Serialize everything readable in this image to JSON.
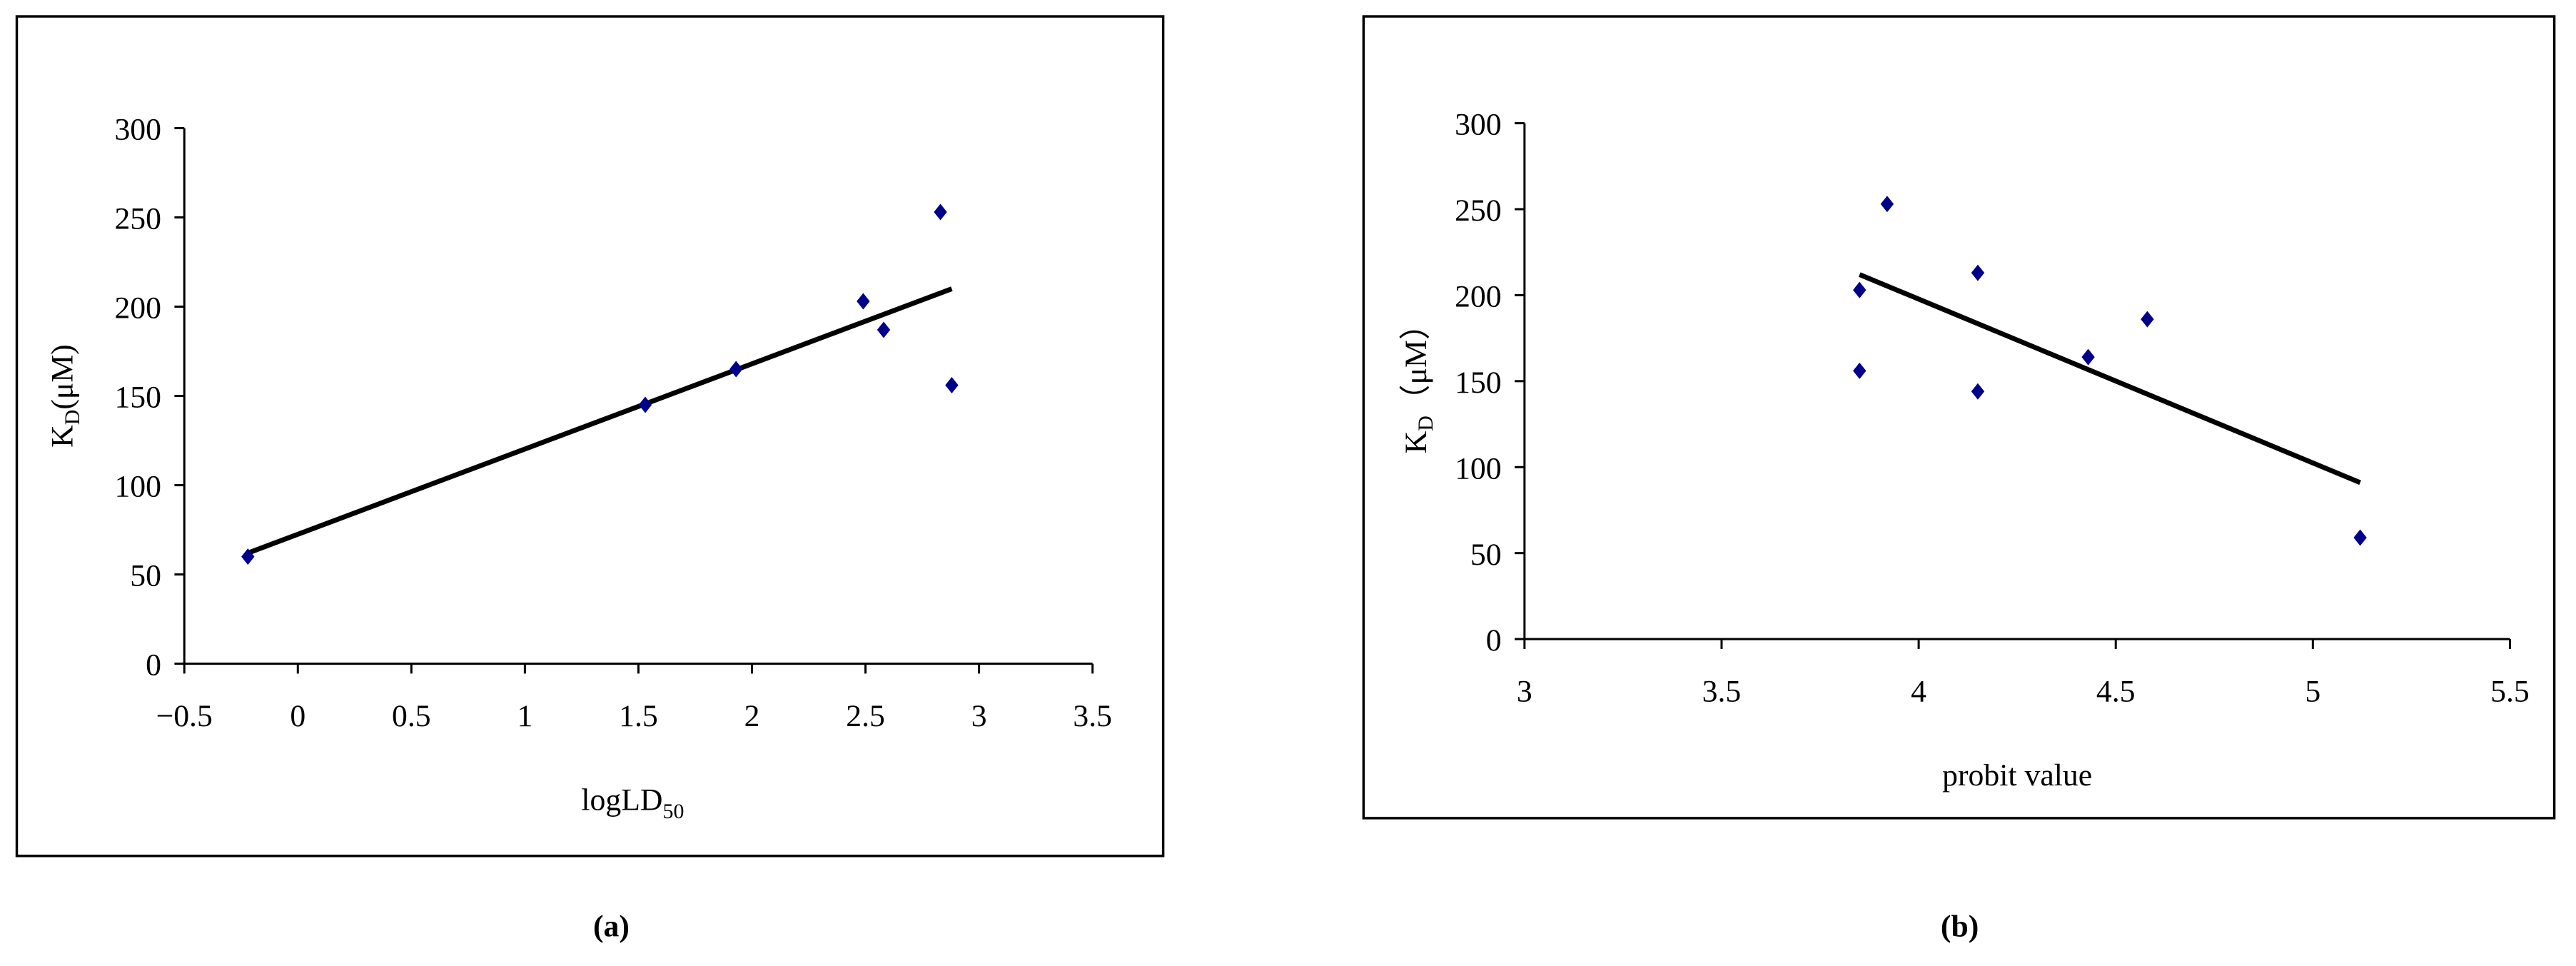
{
  "chart_data": [
    {
      "type": "scatter",
      "panel_label": "(a)",
      "x_label": [
        "logLD",
        "50"
      ],
      "y_label": [
        "K",
        "D",
        "(μM)"
      ],
      "x": [
        -0.22,
        1.53,
        1.93,
        2.49,
        2.58,
        2.83,
        2.88
      ],
      "values": [
        60,
        145,
        165,
        203,
        187,
        253,
        156
      ],
      "color": "#00008b",
      "trendline": {
        "x": [
          -0.22,
          2.88
        ],
        "values": [
          62,
          210
        ],
        "color": "#000000"
      },
      "xlim": [
        -0.5,
        3.5
      ],
      "xticks": [
        {
          "value": -0.5,
          "label": "−0.5"
        },
        0,
        0.5,
        1,
        1.5,
        2,
        2.5,
        3,
        3.5
      ],
      "ylim": [
        0,
        300
      ],
      "yticks": [
        0,
        50,
        100,
        150,
        200,
        250,
        300
      ]
    },
    {
      "type": "scatter",
      "panel_label": "(b)",
      "x_label": [
        "probit value"
      ],
      "y_label": [
        "K",
        "D",
        "（μM）"
      ],
      "x": [
        3.85,
        3.85,
        3.92,
        4.15,
        4.15,
        4.43,
        4.58,
        5.12
      ],
      "values": [
        203,
        156,
        253,
        213,
        144,
        164,
        186,
        59
      ],
      "color": "#00008b",
      "trendline": {
        "x": [
          3.85,
          5.12
        ],
        "values": [
          212,
          91
        ],
        "color": "#000000"
      },
      "xlim": [
        3,
        5.5
      ],
      "xticks": [
        3,
        3.5,
        4,
        4.5,
        5,
        5.5
      ],
      "ylim": [
        0,
        300
      ],
      "yticks": [
        0,
        50,
        100,
        150,
        200,
        250,
        300
      ]
    }
  ]
}
